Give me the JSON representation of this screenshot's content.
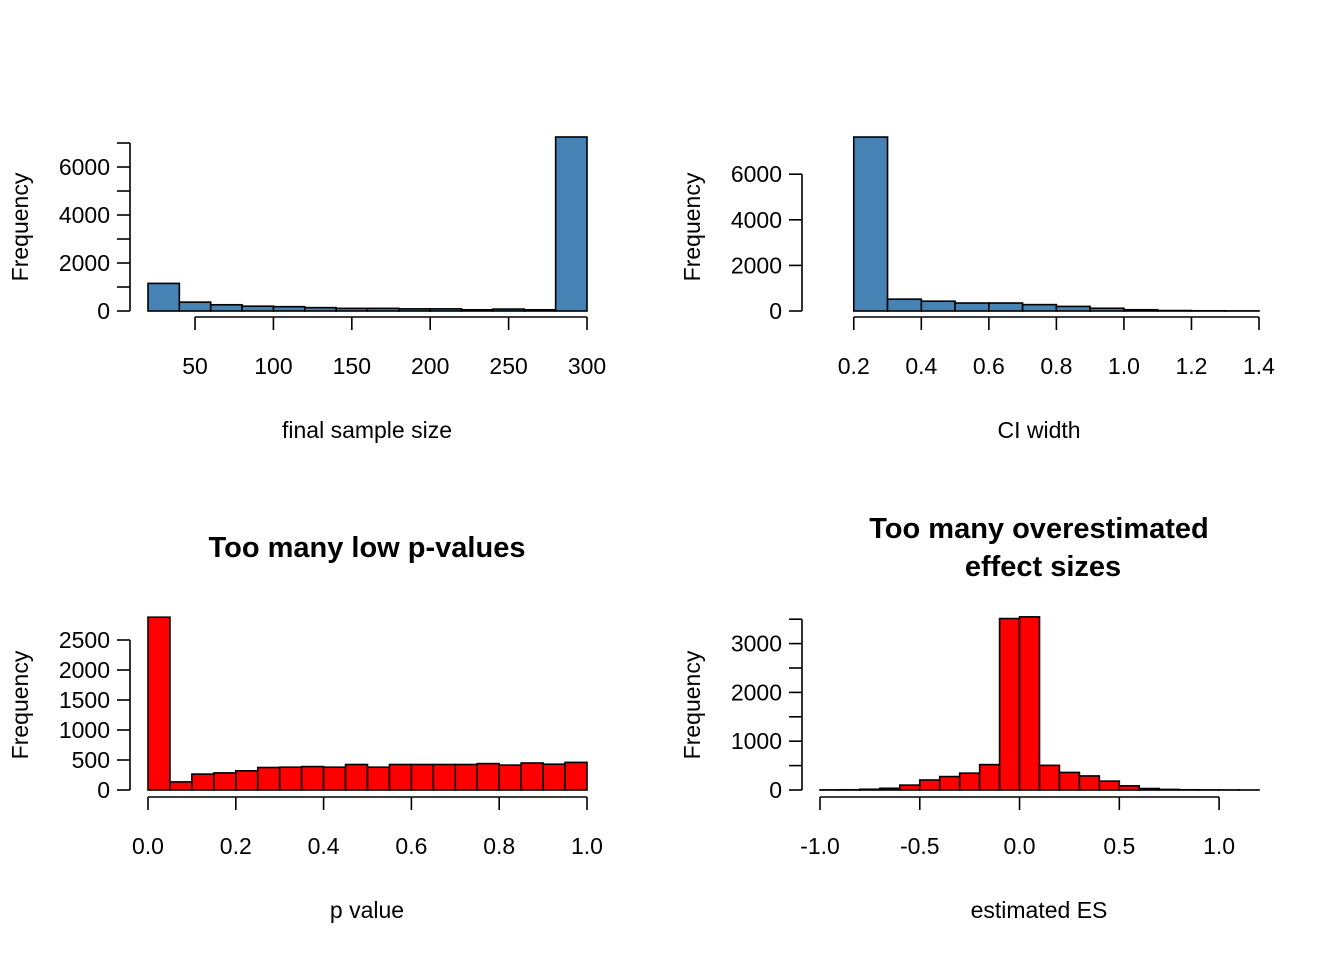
{
  "chart_data": [
    {
      "type": "bar",
      "subtype": "histogram",
      "title": "",
      "xlabel": "final sample size",
      "ylabel": "Frequency",
      "fill": "#4682B4",
      "bin_edges": [
        20,
        40,
        60,
        80,
        100,
        120,
        140,
        160,
        180,
        200,
        220,
        240,
        260,
        280,
        300
      ],
      "values": [
        1150,
        370,
        260,
        200,
        180,
        140,
        110,
        110,
        90,
        90,
        50,
        80,
        50,
        7250
      ],
      "xticks": [
        50,
        100,
        150,
        200,
        250,
        300
      ],
      "xtick_labels": [
        "50",
        "100",
        "150",
        "200",
        "250",
        "300"
      ],
      "yticks": [
        0,
        1000,
        2000,
        3000,
        4000,
        5000,
        6000,
        7000
      ],
      "ytick_labels": [
        "0",
        "",
        "2000",
        "",
        "4000",
        "",
        "6000",
        ""
      ],
      "xlim": [
        20,
        300
      ],
      "ylim": [
        0,
        7000
      ],
      "grid": false
    },
    {
      "type": "bar",
      "subtype": "histogram",
      "title": "",
      "xlabel": "CI width",
      "ylabel": "Frequency",
      "fill": "#4682B4",
      "bin_edges": [
        0.1,
        0.2,
        0.3,
        0.4,
        0.5,
        0.6,
        0.7,
        0.8,
        0.9,
        1.0,
        1.1,
        1.2,
        1.3,
        1.4
      ],
      "values": [
        0,
        7630,
        520,
        430,
        350,
        350,
        280,
        200,
        120,
        55,
        20,
        10,
        5
      ],
      "xticks": [
        0.2,
        0.4,
        0.6,
        0.8,
        1.0,
        1.2,
        1.4
      ],
      "xtick_labels": [
        "0.2",
        "0.4",
        "0.6",
        "0.8",
        "1.0",
        "1.2",
        "1.4"
      ],
      "yticks": [
        0,
        2000,
        4000,
        6000
      ],
      "ytick_labels": [
        "0",
        "2000",
        "4000",
        "6000"
      ],
      "xlim": [
        0.1,
        1.4
      ],
      "ylim": [
        0,
        6000
      ],
      "grid": false
    },
    {
      "type": "bar",
      "subtype": "histogram",
      "title": "Too many low p-values",
      "xlabel": "p value",
      "ylabel": "Frequency",
      "fill": "#FF0000",
      "bin_edges": [
        0.0,
        0.05,
        0.1,
        0.15,
        0.2,
        0.25,
        0.3,
        0.35,
        0.4,
        0.45,
        0.5,
        0.55,
        0.6,
        0.65,
        0.7,
        0.75,
        0.8,
        0.85,
        0.9,
        0.95,
        1.0
      ],
      "values": [
        2880,
        135,
        265,
        285,
        320,
        375,
        380,
        390,
        380,
        425,
        380,
        425,
        425,
        425,
        425,
        440,
        415,
        450,
        430,
        460
      ],
      "xticks": [
        0.0,
        0.2,
        0.4,
        0.6,
        0.8,
        1.0
      ],
      "xtick_labels": [
        "0.0",
        "0.2",
        "0.4",
        "0.6",
        "0.8",
        "1.0"
      ],
      "yticks": [
        0,
        500,
        1000,
        1500,
        2000,
        2500
      ],
      "ytick_labels": [
        "0",
        "500",
        "1000",
        "1500",
        "2000",
        "2500"
      ],
      "xlim": [
        0,
        1
      ],
      "ylim": [
        0,
        2500
      ],
      "grid": false
    },
    {
      "type": "bar",
      "subtype": "histogram",
      "title": "Too many overestimated\neffect sizes",
      "title_lines": [
        "Too many overestimated",
        "effect sizes"
      ],
      "xlabel": "estimated ES",
      "ylabel": "Frequency",
      "fill": "#FF0000",
      "bin_edges": [
        -1.0,
        -0.9,
        -0.8,
        -0.7,
        -0.6,
        -0.5,
        -0.4,
        -0.3,
        -0.2,
        -0.1,
        0.0,
        0.1,
        0.2,
        0.3,
        0.4,
        0.5,
        0.6,
        0.7,
        0.8,
        0.9,
        1.0,
        1.1,
        1.2
      ],
      "values": [
        3,
        5,
        15,
        35,
        100,
        205,
        275,
        345,
        520,
        3513,
        3548,
        505,
        360,
        288,
        182,
        85,
        30,
        12,
        5,
        3,
        2,
        1
      ],
      "xticks": [
        -1.0,
        -0.5,
        0.0,
        0.5,
        1.0
      ],
      "xtick_labels": [
        "-1.0",
        "-0.5",
        "0.0",
        "0.5",
        "1.0"
      ],
      "yticks": [
        0,
        500,
        1000,
        1500,
        2000,
        2500,
        3000,
        3500
      ],
      "ytick_labels": [
        "0",
        "",
        "1000",
        "",
        "2000",
        "",
        "3000",
        ""
      ],
      "xlim": [
        -1.0,
        1.2
      ],
      "ylim": [
        0,
        3500
      ],
      "grid": false
    }
  ]
}
